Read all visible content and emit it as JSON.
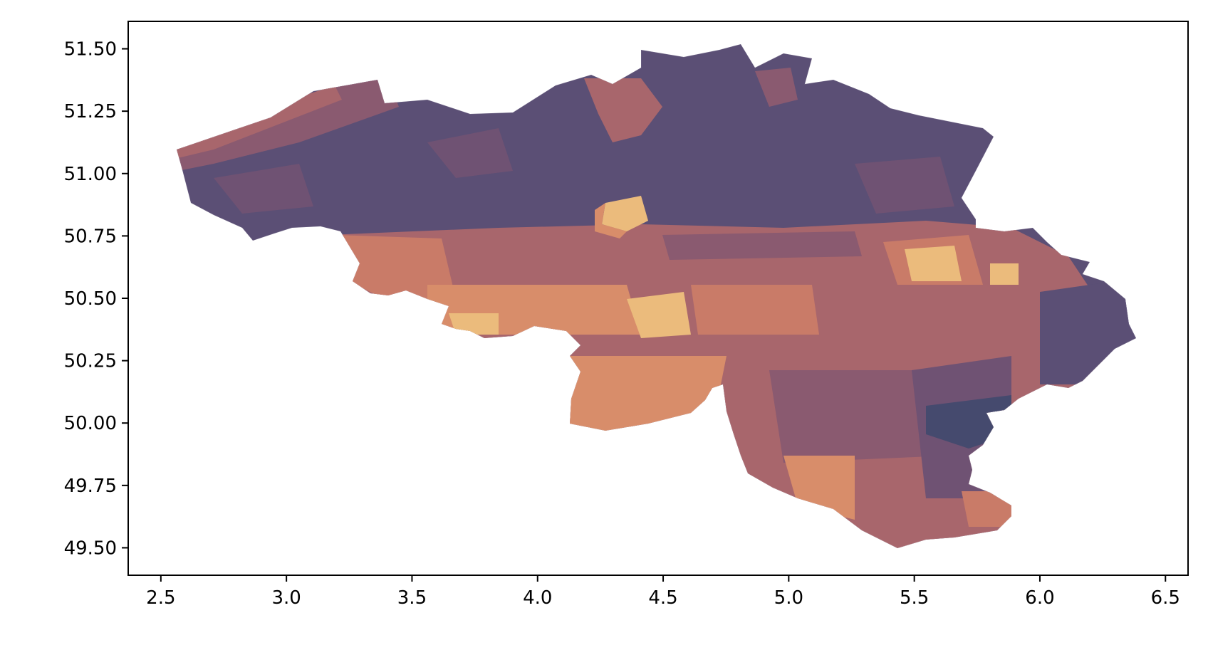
{
  "chart_data": {
    "type": "choropleth map",
    "region": "Belgium",
    "x_ticks": [
      "2.5",
      "3.0",
      "3.5",
      "4.0",
      "4.5",
      "5.0",
      "5.5",
      "6.0",
      "6.5"
    ],
    "y_ticks": [
      "51.50",
      "51.25",
      "51.00",
      "50.75",
      "50.50",
      "50.25",
      "50.00",
      "49.75",
      "49.50"
    ],
    "xlim": [
      2.37,
      6.59
    ],
    "ylim": [
      49.39,
      51.61
    ],
    "grid": false,
    "legend": "none",
    "colors": {
      "darkest": "#454a6e",
      "dark": "#5b4f75",
      "mid_dark": "#6f5273",
      "mid": "#8a5a70",
      "mid_light": "#a8666c",
      "light": "#c97b68",
      "lighter": "#d88d6a",
      "lightest": "#ebbb7c",
      "axes_frame": "#000000",
      "background": "#ffffff"
    }
  }
}
